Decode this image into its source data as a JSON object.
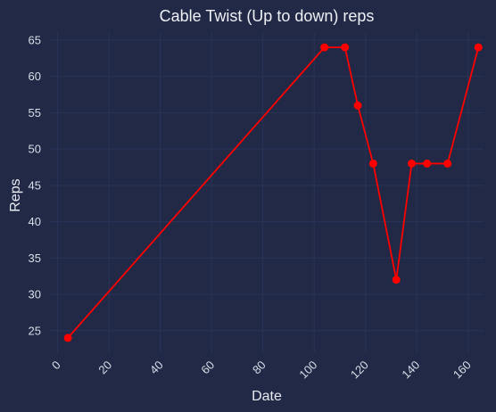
{
  "chart_data": {
    "type": "line",
    "title": "Cable Twist (Up to down) reps",
    "xlabel": "Date",
    "ylabel": "Reps",
    "x_ticks": [
      0,
      20,
      40,
      60,
      80,
      100,
      120,
      140,
      160
    ],
    "y_ticks": [
      25,
      30,
      35,
      40,
      45,
      50,
      55,
      60,
      65
    ],
    "xlim": [
      -3,
      166
    ],
    "ylim": [
      21.9,
      66.1
    ],
    "grid": true,
    "legend": "none",
    "series": [
      {
        "color": "#ff0000",
        "marker": "circle",
        "x": [
          4,
          104,
          112,
          117,
          123,
          132,
          138,
          144,
          152,
          164
        ],
        "y": [
          24,
          64,
          64,
          56,
          48,
          32,
          48,
          48,
          48,
          64
        ]
      }
    ],
    "colors": {
      "background": "#212946",
      "grid": "#2a3459",
      "text": "#d9dde8"
    }
  }
}
